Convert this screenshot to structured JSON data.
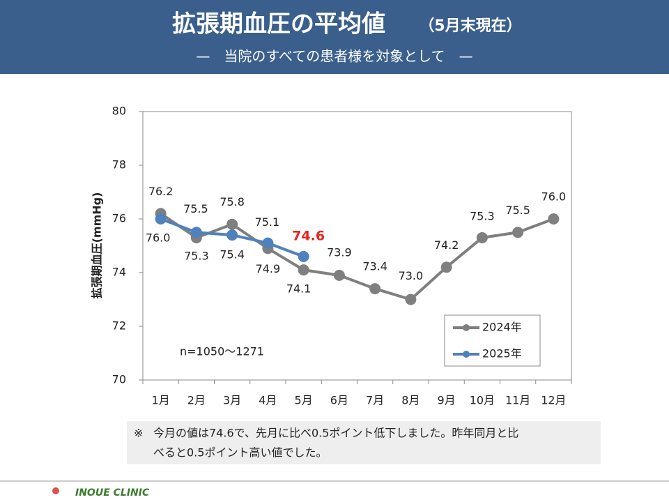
{
  "header": {
    "title": "拡張期血圧の平均値",
    "title_suffix": "（5月末現在）",
    "subtitle": "—　当院のすべての患者様を対象として　—"
  },
  "chart_data": {
    "type": "line",
    "ylabel": "拡張期血圧(mmHg)",
    "categories": [
      "1月",
      "2月",
      "3月",
      "4月",
      "5月",
      "6月",
      "7月",
      "8月",
      "9月",
      "10月",
      "11月",
      "12月"
    ],
    "series": [
      {
        "name": "2024年",
        "color": "#7f7f7f",
        "values": [
          76.2,
          75.3,
          75.8,
          74.9,
          74.1,
          73.9,
          73.4,
          73.0,
          74.2,
          75.3,
          75.5,
          76.0
        ],
        "value_labels": [
          "76.2",
          "75.3",
          "75.8",
          "74.9",
          "74.1",
          "73.9",
          "73.4",
          "73.0",
          "74.2",
          "75.3",
          "75.5",
          "76.0"
        ]
      },
      {
        "name": "2025年",
        "color": "#4f81bd",
        "values": [
          76.0,
          75.5,
          75.4,
          75.1,
          74.6,
          null,
          null,
          null,
          null,
          null,
          null,
          null
        ],
        "value_labels": [
          "76.0",
          "75.5",
          "75.4",
          "75.1",
          "74.6",
          null,
          null,
          null,
          null,
          null,
          null,
          null
        ]
      }
    ],
    "highlight": {
      "series": 1,
      "index": 4,
      "color": "#e8231e"
    },
    "ylim": [
      70,
      80
    ],
    "yticks": [
      70,
      72,
      74,
      76,
      78,
      80
    ],
    "annotation": "n=1050～1271",
    "legend": "lower right"
  },
  "note": {
    "mark": "※",
    "lines": [
      "今月の値は74.6で、先月に比べ0.5ポイント低下しました。昨年同月と比",
      "べると0.5ポイント高い値でした。"
    ]
  },
  "footer": {
    "clinic": "INOUE CLINIC"
  }
}
